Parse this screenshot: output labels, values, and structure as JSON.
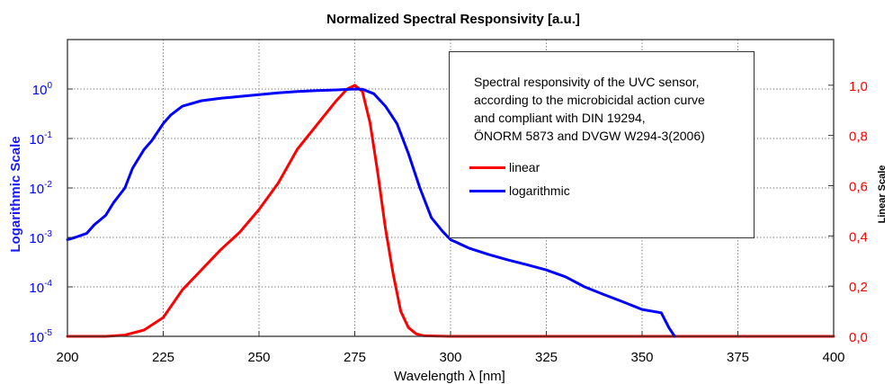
{
  "chart_data": {
    "type": "line",
    "title": "Normalized Spectral Responsivity [a.u.]",
    "xlabel": "Wavelength λ [nm]",
    "ylabel_left": "Logarithmic Scale",
    "ylabel_right": "Linear Scale",
    "xlim": [
      200,
      400
    ],
    "x_ticks": [
      200,
      225,
      250,
      275,
      300,
      325,
      350,
      375,
      400
    ],
    "y_left_scale": "log",
    "y_left_lim": [
      1e-05,
      10
    ],
    "y_left_ticks": [
      {
        "value": 1e-05,
        "base": "10",
        "exp": "-5"
      },
      {
        "value": 0.0001,
        "base": "10",
        "exp": "-4"
      },
      {
        "value": 0.001,
        "base": "10",
        "exp": "-3"
      },
      {
        "value": 0.01,
        "base": "10",
        "exp": "-2"
      },
      {
        "value": 0.1,
        "base": "10",
        "exp": "-1"
      },
      {
        "value": 1,
        "base": "10",
        "exp": "0"
      }
    ],
    "y_right_lim": [
      0,
      1.1818
    ],
    "y_right_ticks": [
      {
        "value": 0.0,
        "label": "0,0"
      },
      {
        "value": 0.2,
        "label": "0,2"
      },
      {
        "value": 0.4,
        "label": "0,4"
      },
      {
        "value": 0.6,
        "label": "0,6"
      },
      {
        "value": 0.8,
        "label": "0,8"
      },
      {
        "value": 1.0,
        "label": "1,0"
      }
    ],
    "grid": true,
    "legend_position": "top-right",
    "annotation_lines": [
      "Spectral responsivity of the UVC sensor,",
      "according to the microbicidal action curve",
      "and compliant with DIN 19294,",
      "ÖNORM 5873 and DVGW W294-3(2006)"
    ],
    "series": [
      {
        "name": "linear",
        "color": "#ff0000",
        "axis": "right",
        "x": [
          200,
          205,
          210,
          215,
          220,
          225,
          230,
          235,
          240,
          245,
          250,
          255,
          260,
          265,
          270,
          273,
          275,
          277,
          279,
          281,
          283,
          285,
          287,
          289,
          291,
          293,
          300,
          350,
          400
        ],
        "y": [
          0.0,
          0.0,
          0.0,
          0.005,
          0.025,
          0.075,
          0.185,
          0.265,
          0.345,
          0.415,
          0.505,
          0.61,
          0.745,
          0.84,
          0.935,
          0.985,
          1.0,
          0.975,
          0.85,
          0.65,
          0.43,
          0.25,
          0.1,
          0.035,
          0.01,
          0.002,
          0.0,
          0.0,
          0.0
        ]
      },
      {
        "name": "logarithmic",
        "color": "#0000ff",
        "axis": "left",
        "x": [
          200,
          202,
          205,
          207,
          210,
          212,
          215,
          217,
          220,
          222,
          225,
          227,
          230,
          235,
          240,
          245,
          250,
          255,
          260,
          265,
          270,
          275,
          277,
          280,
          283,
          286,
          289,
          292,
          295,
          298,
          300,
          305,
          310,
          315,
          320,
          325,
          330,
          335,
          340,
          345,
          350,
          355,
          357,
          358.5
        ],
        "y": [
          0.0009,
          0.001,
          0.0012,
          0.0018,
          0.0028,
          0.005,
          0.01,
          0.025,
          0.06,
          0.09,
          0.2,
          0.3,
          0.45,
          0.58,
          0.65,
          0.71,
          0.77,
          0.84,
          0.89,
          0.93,
          0.96,
          1.0,
          0.99,
          0.8,
          0.45,
          0.2,
          0.05,
          0.01,
          0.0025,
          0.0013,
          0.0009,
          0.0006,
          0.00045,
          0.00035,
          0.00028,
          0.00022,
          0.00016,
          0.0001,
          7e-05,
          5e-05,
          3.5e-05,
          3e-05,
          1.5e-05,
          1e-05
        ]
      }
    ]
  }
}
